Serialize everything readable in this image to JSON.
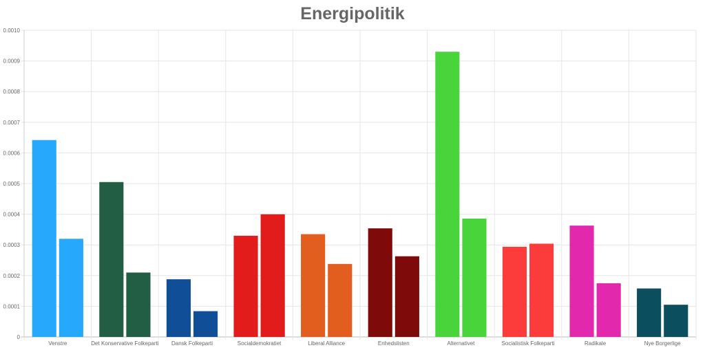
{
  "chart_data": {
    "type": "bar",
    "title": "Energipolitik",
    "xlabel": "",
    "ylabel": "",
    "ylim": [
      0,
      0.001
    ],
    "yticks": [
      "0",
      "0.0001",
      "0.0002",
      "0.0003",
      "0.0004",
      "0.0005",
      "0.0006",
      "0.0007",
      "0.0008",
      "0.0009",
      "0.0010"
    ],
    "grid": true,
    "legend": "none",
    "categories": [
      "Venstre",
      "Det Konservative Folkeparti",
      "Dansk Folkeparti",
      "Socialdemokratiet",
      "Liberal Alliance",
      "Enhedslisten",
      "Alternativet",
      "Socialistisk Folkeparti",
      "Radikale",
      "Nye Borgerlige"
    ],
    "colors": [
      "#26a9fc",
      "#225e44",
      "#114e98",
      "#e21b1b",
      "#e25e1e",
      "#7e0a0a",
      "#4ad43c",
      "#fc3b3b",
      "#e228ac",
      "#0b4e5e"
    ],
    "series": [
      {
        "values": [
          0.000642,
          0.000505,
          0.000188,
          0.00033,
          0.000335,
          0.000354,
          0.00093,
          0.000294,
          0.000363,
          0.000158
        ]
      },
      {
        "values": [
          0.00032,
          0.00021,
          8.4e-05,
          0.0004,
          0.000238,
          0.000263,
          0.000386,
          0.000304,
          0.000175,
          0.000105
        ]
      }
    ]
  }
}
